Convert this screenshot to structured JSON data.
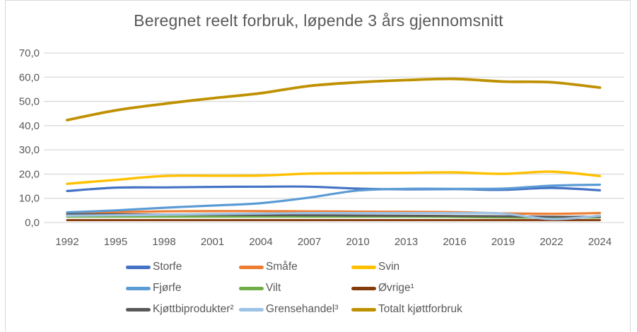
{
  "window": {
    "background": "#FFFFFF",
    "frame_border_color": "#D9D9D9"
  },
  "chart_data": {
    "type": "line",
    "title": "Beregnet reelt forbruk, løpende 3 års gjennomsnitt",
    "title_color": "#595959",
    "categories": [
      "1992",
      "1995",
      "1998",
      "2001",
      "2004",
      "2007",
      "2010",
      "2013",
      "2016",
      "2019",
      "2022",
      "2024"
    ],
    "x_axis": {
      "label_color": "#595959"
    },
    "y_axis": {
      "min": 0,
      "max": 70,
      "tick_step": 10,
      "tick_labels": [
        "0,0",
        "10,0",
        "20,0",
        "30,0",
        "40,0",
        "50,0",
        "60,0",
        "70,0"
      ],
      "label_color": "#595959",
      "grid": true,
      "grid_color": "#D9D9D9"
    },
    "legend_position": "bottom",
    "smoothed_lines": true,
    "series": [
      {
        "name": "Storfe",
        "color": "#4472C4",
        "width": 3.2,
        "values": [
          13.0,
          14.4,
          14.5,
          14.7,
          14.8,
          14.8,
          14.0,
          13.7,
          13.8,
          13.5,
          14.3,
          13.3
        ]
      },
      {
        "name": "Småfe",
        "color": "#ED7D31",
        "width": 3.2,
        "values": [
          4.0,
          4.3,
          4.6,
          4.7,
          4.7,
          4.6,
          4.5,
          4.4,
          4.3,
          3.8,
          3.6,
          3.9
        ]
      },
      {
        "name": "Svin",
        "color": "#FFC000",
        "width": 3.4,
        "values": [
          16.0,
          17.6,
          19.2,
          19.3,
          19.4,
          20.2,
          20.4,
          20.5,
          20.7,
          20.1,
          21.0,
          19.2
        ]
      },
      {
        "name": "Fjørfe",
        "color": "#5B9BD5",
        "width": 3.2,
        "values": [
          4.2,
          5.0,
          6.1,
          7.0,
          8.0,
          10.3,
          13.2,
          13.9,
          13.9,
          14.0,
          15.2,
          15.6
        ]
      },
      {
        "name": "Vilt",
        "color": "#70AD47",
        "width": 3.0,
        "values": [
          2.4,
          2.4,
          2.4,
          2.4,
          2.4,
          2.4,
          2.4,
          2.4,
          2.3,
          2.1,
          2.0,
          2.1
        ]
      },
      {
        "name": "Øvrige¹",
        "color": "#843C0C",
        "width": 3.0,
        "values": [
          1.0,
          1.0,
          1.0,
          1.0,
          1.0,
          1.0,
          1.0,
          1.0,
          1.0,
          1.0,
          1.0,
          1.0
        ]
      },
      {
        "name": "Kjøttbiprodukter²",
        "color": "#595959",
        "width": 3.0,
        "values": [
          3.4,
          3.4,
          3.3,
          3.2,
          3.1,
          3.0,
          2.9,
          2.8,
          2.7,
          2.6,
          2.4,
          2.4
        ]
      },
      {
        "name": "Grensehandel³",
        "color": "#9DC3E6",
        "width": 3.2,
        "values": [
          2.8,
          3.0,
          3.2,
          3.5,
          3.7,
          3.9,
          3.9,
          3.9,
          3.9,
          3.7,
          1.4,
          2.8
        ]
      },
      {
        "name": "Totalt kjøttforbruk",
        "color": "#BF9000",
        "width": 3.8,
        "values": [
          42.3,
          46.3,
          49.0,
          51.3,
          53.4,
          56.4,
          57.9,
          58.8,
          59.3,
          58.2,
          57.9,
          55.7
        ]
      }
    ]
  }
}
